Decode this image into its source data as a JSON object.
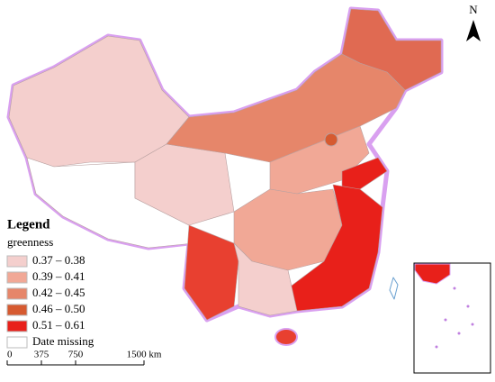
{
  "north": "N",
  "legend": {
    "title": "Legend",
    "subtitle": "greenness",
    "items": [
      {
        "label": "0.37 – 0.38",
        "color": "#f4cfcd"
      },
      {
        "label": "0.39 – 0.41",
        "color": "#f1a896"
      },
      {
        "label": "0.42 – 0.45",
        "color": "#e6866a"
      },
      {
        "label": "0.46 – 0.50",
        "color": "#d65a30"
      },
      {
        "label": "0.51 – 0.61",
        "color": "#e8201a"
      },
      {
        "label": "Date missing",
        "color": "#ffffff"
      }
    ]
  },
  "scale_bar": {
    "labels": [
      "0",
      "375",
      "750",
      "1500 km"
    ]
  }
}
